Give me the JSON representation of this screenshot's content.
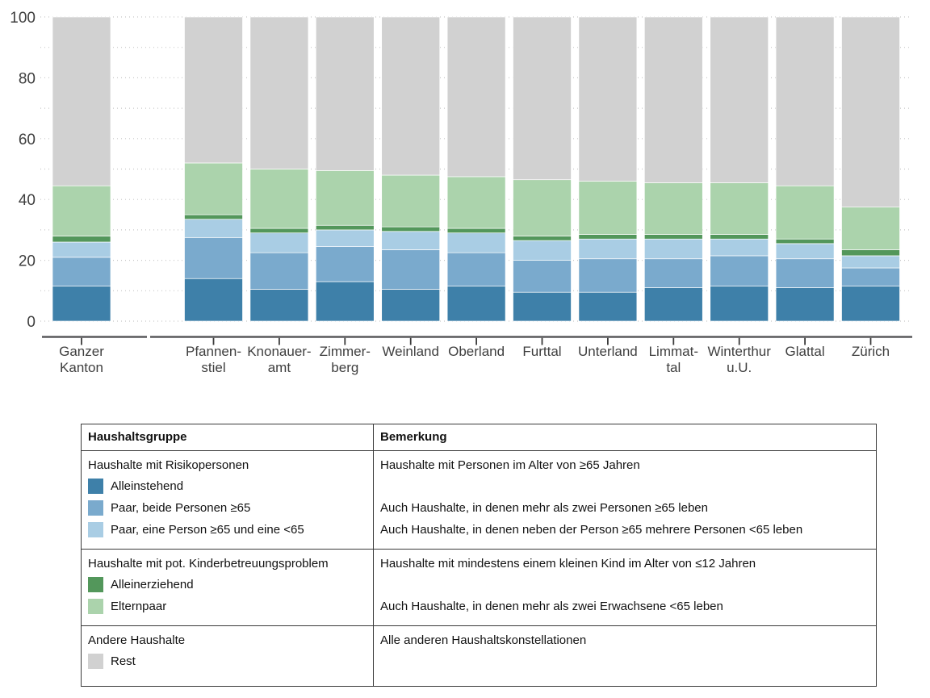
{
  "chart_data": {
    "type": "bar",
    "stacked": true,
    "title": "",
    "xlabel": "",
    "ylabel": "",
    "ylim": [
      0,
      100
    ],
    "yticks": [
      0,
      20,
      40,
      60,
      80,
      100
    ],
    "grid": "dotted horizontal lines every 10, drawn behind bars",
    "legend_position": "table below chart",
    "first_category_separated": true,
    "categories": [
      "Ganzer\nKanton",
      "Pfannen-\nstiel",
      "Knonauer-\namt",
      "Zimmer-\nberg",
      "Weinland",
      "Oberland",
      "Furttal",
      "Unterland",
      "Limmat-\ntal",
      "Winterthur\nu.U.",
      "Glattal",
      "Zürich"
    ],
    "series": [
      {
        "name": "Alleinstehend",
        "color": "#3e80a9",
        "values": [
          11.5,
          14,
          10.5,
          13,
          10.5,
          11.5,
          9.5,
          9.5,
          11,
          11.5,
          11,
          11.5
        ]
      },
      {
        "name": "Paar, beide Personen ≥65",
        "color": "#7aaacd",
        "values": [
          9.5,
          13.5,
          12,
          11.5,
          13,
          11,
          10.5,
          11,
          9.5,
          10,
          9.5,
          6
        ]
      },
      {
        "name": "Paar, eine Person ≥65 und eine <65",
        "color": "#a9cde4",
        "values": [
          5,
          6,
          6.5,
          5.5,
          6,
          6.5,
          6.5,
          6.5,
          6.5,
          5.5,
          5,
          4
        ]
      },
      {
        "name": "Alleinerziehend",
        "color": "#53975b",
        "values": [
          2,
          1.5,
          1.5,
          1.5,
          1.5,
          1.5,
          1.5,
          1.5,
          1.5,
          1.5,
          1.5,
          2
        ]
      },
      {
        "name": "Elternpaar",
        "color": "#abd3ac",
        "values": [
          16.5,
          17,
          19.5,
          18,
          17,
          17,
          18.5,
          17.5,
          17,
          17,
          17.5,
          14
        ]
      },
      {
        "name": "Rest",
        "color": "#d1d1d1",
        "values": [
          55.5,
          48,
          50,
          50.5,
          52,
          52.5,
          53.5,
          54,
          54.5,
          54.5,
          55.5,
          62.5
        ]
      }
    ]
  },
  "table": {
    "headers": {
      "group": "Haushaltsgruppe",
      "remark": "Bemerkung"
    },
    "sections": [
      {
        "title": "Haushalte mit Risikopersonen",
        "title_remark": "Haushalte mit Personen im Alter von ≥65 Jahren",
        "items": [
          {
            "label": "Alleinstehend",
            "color": "#3e80a9",
            "remark": ""
          },
          {
            "label": "Paar, beide Personen ≥65",
            "color": "#7aaacd",
            "remark": "Auch Haushalte, in denen mehr als zwei Personen ≥65 leben"
          },
          {
            "label": "Paar, eine Person ≥65 und eine <65",
            "color": "#a9cde4",
            "remark": "Auch Haushalte, in denen neben der Person ≥65 mehrere Personen <65 leben"
          }
        ]
      },
      {
        "title": "Haushalte mit pot. Kinderbetreuungsproblem",
        "title_remark": "Haushalte mit mindestens einem kleinen Kind im Alter von ≤12 Jahren",
        "items": [
          {
            "label": "Alleinerziehend",
            "color": "#53975b",
            "remark": ""
          },
          {
            "label": "Elternpaar",
            "color": "#abd3ac",
            "remark": "Auch Haushalte, in denen mehr als zwei Erwachsene <65 leben"
          }
        ]
      },
      {
        "title": "Andere Haushalte",
        "title_remark": "Alle anderen Haushaltskonstellationen",
        "items": [
          {
            "label": "Rest",
            "color": "#d1d1d1",
            "remark": ""
          }
        ]
      }
    ]
  }
}
